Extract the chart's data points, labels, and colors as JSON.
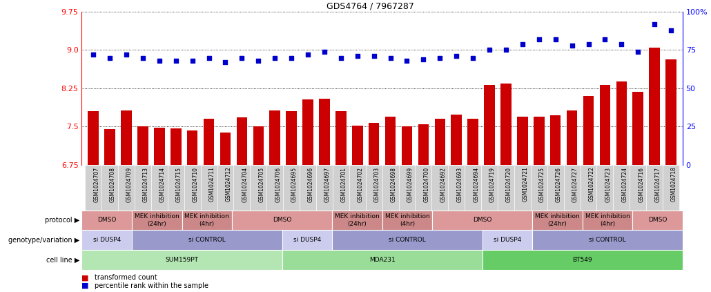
{
  "title": "GDS4764 / 7967287",
  "samples": [
    "GSM1024707",
    "GSM1024708",
    "GSM1024709",
    "GSM1024713",
    "GSM1024714",
    "GSM1024715",
    "GSM1024710",
    "GSM1024711",
    "GSM1024712",
    "GSM1024704",
    "GSM1024705",
    "GSM1024706",
    "GSM1024695",
    "GSM1024696",
    "GSM1024697",
    "GSM1024701",
    "GSM1024702",
    "GSM1024703",
    "GSM1024698",
    "GSM1024699",
    "GSM1024700",
    "GSM1024692",
    "GSM1024693",
    "GSM1024694",
    "GSM1024719",
    "GSM1024720",
    "GSM1024721",
    "GSM1024725",
    "GSM1024726",
    "GSM1024727",
    "GSM1024722",
    "GSM1024723",
    "GSM1024724",
    "GSM1024716",
    "GSM1024717",
    "GSM1024718"
  ],
  "bar_values": [
    7.8,
    7.45,
    7.82,
    7.5,
    7.48,
    7.46,
    7.43,
    7.65,
    7.38,
    7.68,
    7.5,
    7.82,
    7.8,
    8.03,
    8.05,
    7.8,
    7.52,
    7.58,
    7.7,
    7.5,
    7.55,
    7.65,
    7.73,
    7.65,
    8.32,
    8.35,
    7.7,
    7.7,
    7.72,
    7.82,
    8.1,
    8.32,
    8.38,
    8.18,
    9.05,
    8.82
  ],
  "percentile_pct": [
    72,
    70,
    72,
    70,
    68,
    68,
    68,
    70,
    67,
    70,
    68,
    70,
    70,
    72,
    74,
    70,
    71,
    71,
    70,
    68,
    69,
    70,
    71,
    70,
    75,
    75,
    79,
    82,
    82,
    78,
    79,
    82,
    79,
    74,
    92,
    88
  ],
  "ylim_left": [
    6.75,
    9.75
  ],
  "yticks_left": [
    6.75,
    7.5,
    8.25,
    9.0,
    9.75
  ],
  "yticks_right": [
    0,
    25,
    50,
    75,
    100
  ],
  "bar_color": "#cc0000",
  "dot_color": "#0000cc",
  "cell_line_spans": [
    {
      "label": "SUM159PT",
      "start": 0,
      "end": 12,
      "color": "#b3e6b3"
    },
    {
      "label": "MDA231",
      "start": 12,
      "end": 24,
      "color": "#99dd99"
    },
    {
      "label": "BT549",
      "start": 24,
      "end": 36,
      "color": "#66cc66"
    }
  ],
  "genotype_spans": [
    {
      "label": "si DUSP4",
      "start": 0,
      "end": 3,
      "color": "#ccccee"
    },
    {
      "label": "si CONTROL",
      "start": 3,
      "end": 12,
      "color": "#9999cc"
    },
    {
      "label": "si DUSP4",
      "start": 12,
      "end": 15,
      "color": "#ccccee"
    },
    {
      "label": "si CONTROL",
      "start": 15,
      "end": 24,
      "color": "#9999cc"
    },
    {
      "label": "si DUSP4",
      "start": 24,
      "end": 27,
      "color": "#ccccee"
    },
    {
      "label": "si CONTROL",
      "start": 27,
      "end": 36,
      "color": "#9999cc"
    }
  ],
  "protocol_spans": [
    {
      "label": "DMSO",
      "start": 0,
      "end": 3,
      "color": "#dd9999"
    },
    {
      "label": "MEK inhibition\n(24hr)",
      "start": 3,
      "end": 6,
      "color": "#cc8888"
    },
    {
      "label": "MEK inhibition\n(4hr)",
      "start": 6,
      "end": 9,
      "color": "#cc8888"
    },
    {
      "label": "DMSO",
      "start": 9,
      "end": 15,
      "color": "#dd9999"
    },
    {
      "label": "MEK inhibition\n(24hr)",
      "start": 15,
      "end": 18,
      "color": "#cc8888"
    },
    {
      "label": "MEK inhibition\n(4hr)",
      "start": 18,
      "end": 21,
      "color": "#cc8888"
    },
    {
      "label": "DMSO",
      "start": 21,
      "end": 27,
      "color": "#dd9999"
    },
    {
      "label": "MEK inhibition\n(24hr)",
      "start": 27,
      "end": 30,
      "color": "#cc8888"
    },
    {
      "label": "MEK inhibition\n(4hr)",
      "start": 30,
      "end": 33,
      "color": "#cc8888"
    },
    {
      "label": "DMSO",
      "start": 33,
      "end": 36,
      "color": "#dd9999"
    }
  ],
  "row_labels": [
    "cell line",
    "genotype/variation",
    "protocol"
  ]
}
